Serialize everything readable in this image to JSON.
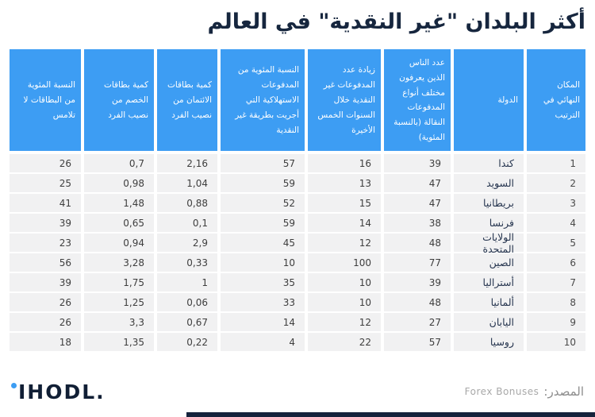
{
  "title": "أكثر البلدان \"غير النقدية\" في العالم",
  "chart_data": {
    "type": "table",
    "columns": [
      {
        "key": "rank",
        "label": "المكان النهائي في الترتيب"
      },
      {
        "key": "country",
        "label": "الدولة"
      },
      {
        "key": "mobile_payment_awareness_pct",
        "label": "عدد الناس الذين يعرفون مختلف أنواع المدفوعات النقالة (بالنسبة المئوية)"
      },
      {
        "key": "cashless_growth_5yr",
        "label": "زيادة عدد المدفوعات غير النقدية خلال السنوات الخمس الأخيرة"
      },
      {
        "key": "cashless_consumer_payments_pct",
        "label": "النسبة المئوية من المدفوعات الاستهلاكية التي أجريت بطريقة غير النقدية"
      },
      {
        "key": "credit_cards_per_capita",
        "label": "كمية بطاقات الائتمان من نصيب الفرد"
      },
      {
        "key": "debit_cards_per_capita",
        "label": "كمية بطاقات الخصم من نصيب الفرد"
      },
      {
        "key": "contactless_cards_pct",
        "label": "النسبة المئوية من البطاقات لا تلامس"
      }
    ],
    "rows": [
      [
        "1",
        "كندا",
        "39",
        "16",
        "57",
        "2,16",
        "0,7",
        "26"
      ],
      [
        "2",
        "السويد",
        "47",
        "13",
        "59",
        "1,04",
        "0,98",
        "25"
      ],
      [
        "3",
        "بريطانيا",
        "47",
        "15",
        "52",
        "0,88",
        "1,48",
        "41"
      ],
      [
        "4",
        "فرنسا",
        "38",
        "14",
        "59",
        "0,1",
        "0,65",
        "39"
      ],
      [
        "5",
        "الولايات المتحدة",
        "48",
        "12",
        "45",
        "2,9",
        "0,94",
        "23"
      ],
      [
        "6",
        "الصين",
        "77",
        "100",
        "10",
        "0,33",
        "3,28",
        "56"
      ],
      [
        "7",
        "أستراليا",
        "39",
        "10",
        "35",
        "1",
        "1,75",
        "39"
      ],
      [
        "8",
        "ألمانيا",
        "48",
        "10",
        "33",
        "0,06",
        "1,25",
        "26"
      ],
      [
        "9",
        "اليابان",
        "27",
        "12",
        "14",
        "0,67",
        "3,3",
        "26"
      ],
      [
        "10",
        "روسيا",
        "57",
        "22",
        "4",
        "0,22",
        "1,35",
        "18"
      ]
    ]
  },
  "footer": {
    "logo_text": "IHODL.",
    "source_label": "المصدر:",
    "source_value": "Forex Bonuses"
  },
  "colors": {
    "header_blue": "#3D9DF3",
    "row_gray": "#F1F1F2",
    "title_navy": "#16263E",
    "footer_bar_navy": "#15233C"
  }
}
